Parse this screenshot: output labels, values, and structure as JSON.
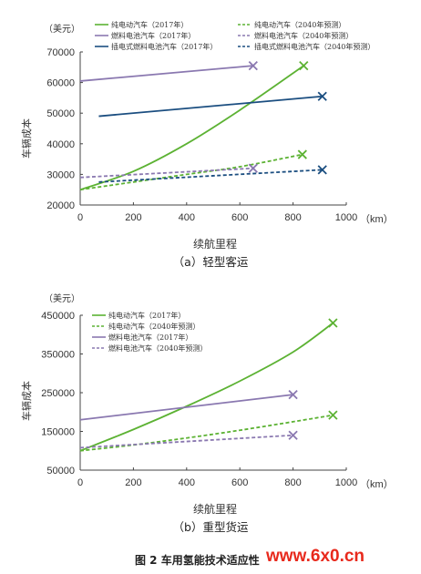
{
  "figure_caption": "图 2    车用氢能技术适应性",
  "watermark": "www.6x0.cn",
  "colors": {
    "bev": "#5cb233",
    "fcev": "#8a78b0",
    "phev": "#1b4e80"
  },
  "chart_data": [
    {
      "type": "line",
      "unit_label": "（美元）",
      "ylabel": "车辆成本",
      "xlabel": "续航里程",
      "x_unit": "（km）",
      "caption": "（a）轻型客运",
      "xlim": [
        0,
        1000
      ],
      "ylim": [
        20000,
        70000
      ],
      "xticks": [
        0,
        200,
        400,
        600,
        800,
        1000
      ],
      "yticks": [
        20000,
        30000,
        40000,
        50000,
        60000,
        70000
      ],
      "series": [
        {
          "name": "纯电动汽车（2017年）",
          "color": "#5cb233",
          "dash": false,
          "x": [
            0,
            200,
            400,
            600,
            840
          ],
          "y": [
            25000,
            31000,
            40000,
            51000,
            65500
          ]
        },
        {
          "name": "燃料电池汽车（2017年）",
          "color": "#8a78b0",
          "dash": false,
          "x": [
            0,
            650
          ],
          "y": [
            60500,
            65500
          ]
        },
        {
          "name": "插电式燃料电池汽车（2017年）",
          "color": "#1b4e80",
          "dash": false,
          "x": [
            70,
            910
          ],
          "y": [
            49000,
            55500
          ]
        },
        {
          "name": "纯电动汽车（2040年预测）",
          "color": "#5cb233",
          "dash": true,
          "x": [
            0,
            200,
            400,
            600,
            835
          ],
          "y": [
            25000,
            27500,
            30000,
            32500,
            36500
          ]
        },
        {
          "name": "燃料电池汽车（2040年预测）",
          "color": "#8a78b0",
          "dash": true,
          "x": [
            0,
            650
          ],
          "y": [
            29000,
            32000
          ]
        },
        {
          "name": "插电式燃料电池汽车（2040年预测）",
          "color": "#1b4e80",
          "dash": true,
          "x": [
            70,
            910
          ],
          "y": [
            27500,
            31500
          ]
        }
      ]
    },
    {
      "type": "line",
      "unit_label": "（美元）",
      "ylabel": "车辆成本",
      "xlabel": "续航里程",
      "x_unit": "（km）",
      "caption": "（b）重型货运",
      "xlim": [
        0,
        1000
      ],
      "ylim": [
        50000,
        450000
      ],
      "xticks": [
        0,
        200,
        400,
        600,
        800,
        1000
      ],
      "yticks": [
        50000,
        150000,
        250000,
        350000,
        450000
      ],
      "series": [
        {
          "name": "纯电动汽车（2017年）",
          "color": "#5cb233",
          "dash": false,
          "x": [
            0,
            200,
            400,
            600,
            800,
            950
          ],
          "y": [
            100000,
            155000,
            215000,
            280000,
            355000,
            430000
          ]
        },
        {
          "name": "纯电动汽车（2040年预测）",
          "color": "#5cb233",
          "dash": true,
          "x": [
            0,
            200,
            400,
            600,
            800,
            950
          ],
          "y": [
            100000,
            115000,
            133000,
            153000,
            175000,
            192000
          ]
        },
        {
          "name": "燃料电池汽车（2017年）",
          "color": "#8a78b0",
          "dash": false,
          "x": [
            0,
            800
          ],
          "y": [
            180000,
            245000
          ]
        },
        {
          "name": "燃料电池汽车（2040年预测）",
          "color": "#8a78b0",
          "dash": true,
          "x": [
            0,
            800
          ],
          "y": [
            108000,
            140000
          ]
        }
      ]
    }
  ]
}
